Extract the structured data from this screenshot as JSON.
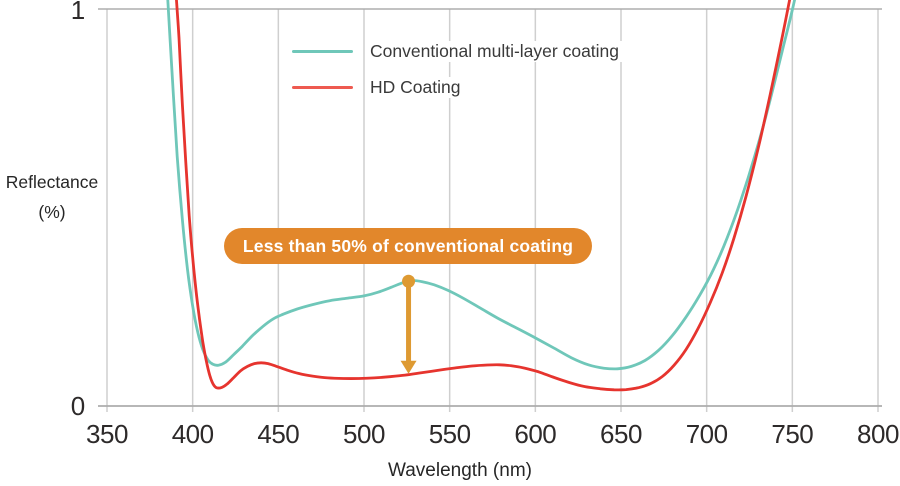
{
  "chart": {
    "y_axis_title_line1": "Reflectance",
    "y_axis_title_line2": "(%)",
    "x_axis_title": "Wavelength (nm)",
    "legend": [
      {
        "label": "Conventional multi-layer coating",
        "color": "#6fc7b9"
      },
      {
        "label": "HD Coating",
        "color": "#ee5a50"
      }
    ],
    "annotation_badge": "Less than 50% of conventional coating"
  },
  "colors": {
    "grid": "#cfcfcf",
    "axis": "#adadad",
    "tick_text": "#2d2a2a",
    "badge_orange": "#e2872b",
    "arrow_orange": "#de9a32"
  },
  "chart_data": {
    "type": "line",
    "title": "",
    "xlabel": "Wavelength (nm)",
    "ylabel": "Reflectance (%)",
    "xlim": [
      350,
      800
    ],
    "ylim": [
      0,
      1
    ],
    "x_ticks": [
      350,
      400,
      450,
      500,
      550,
      600,
      650,
      700,
      750,
      800
    ],
    "y_ticks": [
      0,
      1
    ],
    "grid": "vertical-only",
    "legend_position": "top-center-inside",
    "series": [
      {
        "name": "Conventional multi-layer coating",
        "color": "#6fc7b9",
        "points": [
          [
            385,
            1.06
          ],
          [
            388,
            0.84
          ],
          [
            391,
            0.63
          ],
          [
            394,
            0.47
          ],
          [
            397,
            0.345
          ],
          [
            400,
            0.252
          ],
          [
            403,
            0.186
          ],
          [
            406,
            0.142
          ],
          [
            409,
            0.116
          ],
          [
            412,
            0.105
          ],
          [
            415,
            0.103
          ],
          [
            419,
            0.11
          ],
          [
            424,
            0.13
          ],
          [
            429,
            0.151
          ],
          [
            435,
            0.178
          ],
          [
            441,
            0.201
          ],
          [
            447,
            0.22
          ],
          [
            453,
            0.232
          ],
          [
            461,
            0.245
          ],
          [
            470,
            0.256
          ],
          [
            480,
            0.266
          ],
          [
            490,
            0.272
          ],
          [
            500,
            0.278
          ],
          [
            508,
            0.287
          ],
          [
            516,
            0.3
          ],
          [
            523,
            0.312
          ],
          [
            528,
            0.317
          ],
          [
            534,
            0.314
          ],
          [
            541,
            0.306
          ],
          [
            549,
            0.292
          ],
          [
            558,
            0.272
          ],
          [
            568,
            0.247
          ],
          [
            578,
            0.222
          ],
          [
            589,
            0.197
          ],
          [
            600,
            0.172
          ],
          [
            611,
            0.146
          ],
          [
            621,
            0.122
          ],
          [
            631,
            0.104
          ],
          [
            640,
            0.0955
          ],
          [
            648,
            0.094
          ],
          [
            656,
            0.1
          ],
          [
            664,
            0.115
          ],
          [
            672,
            0.141
          ],
          [
            680,
            0.178
          ],
          [
            688,
            0.225
          ],
          [
            696,
            0.28
          ],
          [
            704,
            0.345
          ],
          [
            712,
            0.425
          ],
          [
            720,
            0.52
          ],
          [
            728,
            0.63
          ],
          [
            736,
            0.755
          ],
          [
            744,
            0.895
          ],
          [
            750,
            1.0
          ],
          [
            754,
            1.08
          ]
        ]
      },
      {
        "name": "HD Coating",
        "color": "#e6342e",
        "points": [
          [
            390,
            1.06
          ],
          [
            392,
            0.93
          ],
          [
            394,
            0.76
          ],
          [
            396,
            0.615
          ],
          [
            398,
            0.48
          ],
          [
            400,
            0.375
          ],
          [
            402,
            0.29
          ],
          [
            404,
            0.22
          ],
          [
            406,
            0.16
          ],
          [
            408,
            0.113
          ],
          [
            410,
            0.077
          ],
          [
            412,
            0.055
          ],
          [
            414,
            0.046
          ],
          [
            417,
            0.047
          ],
          [
            420,
            0.055
          ],
          [
            424,
            0.072
          ],
          [
            428,
            0.089
          ],
          [
            432,
            0.1
          ],
          [
            436,
            0.107
          ],
          [
            440,
            0.109
          ],
          [
            444,
            0.107
          ],
          [
            449,
            0.1
          ],
          [
            455,
            0.091
          ],
          [
            462,
            0.082
          ],
          [
            470,
            0.0755
          ],
          [
            479,
            0.071
          ],
          [
            488,
            0.0695
          ],
          [
            497,
            0.0695
          ],
          [
            506,
            0.071
          ],
          [
            515,
            0.074
          ],
          [
            524,
            0.078
          ],
          [
            533,
            0.0835
          ],
          [
            543,
            0.09
          ],
          [
            553,
            0.096
          ],
          [
            563,
            0.101
          ],
          [
            572,
            0.1035
          ],
          [
            579,
            0.104
          ],
          [
            586,
            0.1015
          ],
          [
            594,
            0.0955
          ],
          [
            602,
            0.086
          ],
          [
            611,
            0.072
          ],
          [
            620,
            0.059
          ],
          [
            629,
            0.049
          ],
          [
            638,
            0.0435
          ],
          [
            646,
            0.041
          ],
          [
            653,
            0.0415
          ],
          [
            660,
            0.046
          ],
          [
            667,
            0.056
          ],
          [
            674,
            0.074
          ],
          [
            681,
            0.103
          ],
          [
            688,
            0.143
          ],
          [
            695,
            0.196
          ],
          [
            702,
            0.26
          ],
          [
            709,
            0.335
          ],
          [
            716,
            0.425
          ],
          [
            723,
            0.53
          ],
          [
            730,
            0.65
          ],
          [
            737,
            0.785
          ],
          [
            744,
            0.93
          ],
          [
            750,
            1.06
          ]
        ]
      }
    ],
    "annotation": {
      "label": "Less than 50% of conventional coating",
      "badge_color": "#e2872b",
      "arrow_color": "#de9a32",
      "arrow_x": 526,
      "arrow_y_from": 0.315,
      "arrow_y_to": 0.079
    }
  }
}
